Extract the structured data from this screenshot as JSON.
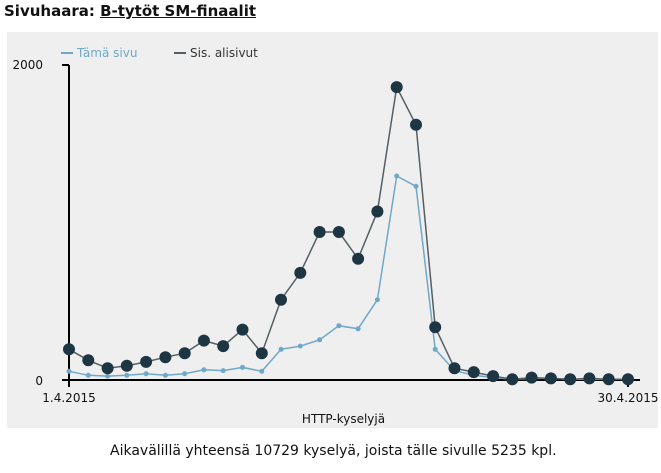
{
  "header": {
    "prefix": "Sivuhaara:",
    "link_text": "B-tytöt SM-finaalit"
  },
  "summary": "Aikavälillä yhteensä 10729 kyselyä, joista tälle sivulle 5235 kpl.",
  "colors": {
    "this_page": "#6fa8c8",
    "subpages_line": "#555f63",
    "subpages_marker": "#1e3644",
    "panel": "#efefef"
  },
  "chart_data": {
    "type": "line",
    "title": "",
    "xlabel": "HTTP-kyselyjä",
    "ylabel": "",
    "x_tick_labels": [
      "1.4.2015",
      "30.4.2015"
    ],
    "y_tick_labels": [
      "0",
      "2000"
    ],
    "ylim": [
      0,
      2000
    ],
    "legend_position": "top-left",
    "grid": false,
    "categories": [
      "1.4.2015",
      "2.4.2015",
      "3.4.2015",
      "4.4.2015",
      "5.4.2015",
      "6.4.2015",
      "7.4.2015",
      "8.4.2015",
      "9.4.2015",
      "10.4.2015",
      "11.4.2015",
      "12.4.2015",
      "13.4.2015",
      "14.4.2015",
      "15.4.2015",
      "16.4.2015",
      "17.4.2015",
      "18.4.2015",
      "19.4.2015",
      "20.4.2015",
      "21.4.2015",
      "22.4.2015",
      "23.4.2015",
      "24.4.2015",
      "25.4.2015",
      "26.4.2015",
      "27.4.2015",
      "28.4.2015",
      "29.4.2015",
      "30.4.2015"
    ],
    "series": [
      {
        "name": "Tämä sivu",
        "color": "#6fa8c8",
        "marker": "small",
        "values": [
          55,
          30,
          25,
          30,
          40,
          30,
          40,
          65,
          60,
          80,
          55,
          195,
          215,
          255,
          345,
          325,
          510,
          1295,
          1230,
          195,
          60,
          30,
          15,
          5,
          10,
          10,
          5,
          5,
          5,
          5
        ]
      },
      {
        "name": "Sis. alisivut",
        "color": "#555f63",
        "marker": "large",
        "values": [
          195,
          125,
          75,
          90,
          115,
          145,
          170,
          250,
          215,
          320,
          170,
          510,
          680,
          940,
          940,
          770,
          1070,
          1860,
          1620,
          335,
          75,
          50,
          25,
          5,
          15,
          10,
          5,
          10,
          5,
          5
        ]
      }
    ]
  }
}
